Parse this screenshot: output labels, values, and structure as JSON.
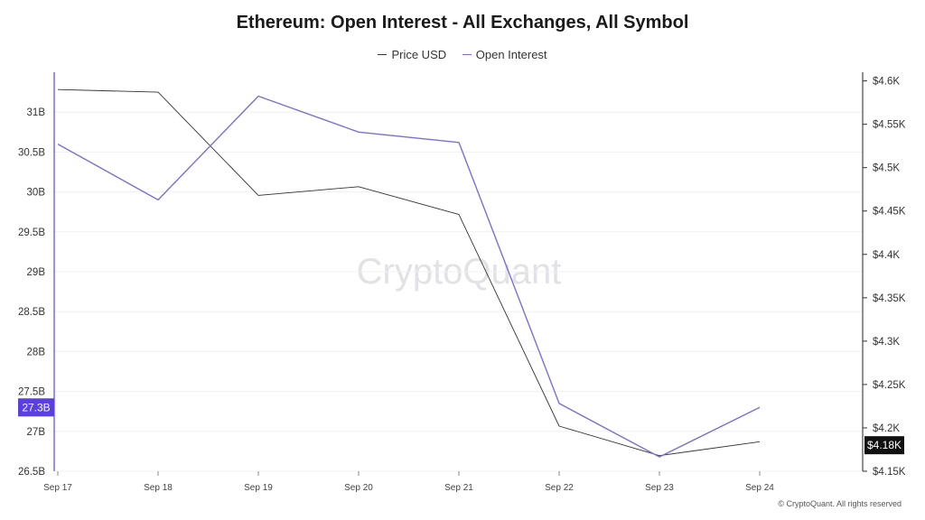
{
  "chart_data": {
    "type": "line",
    "title": "Ethereum: Open Interest - All Exchanges, All Symbol",
    "categories": [
      "Sep 17",
      "Sep 18",
      "Sep 19",
      "Sep 20",
      "Sep 21",
      "Sep 22",
      "Sep 23",
      "Sep 24"
    ],
    "series": [
      {
        "name": "Price USD",
        "axis": "right",
        "color": "#333333",
        "values": [
          4590,
          4587,
          4468,
          4478,
          4446,
          4202,
          4168,
          4184
        ]
      },
      {
        "name": "Open Interest",
        "axis": "left",
        "color": "#7b6fd6",
        "values": [
          30.6,
          29.9,
          31.2,
          30.75,
          30.62,
          27.35,
          26.68,
          27.3
        ]
      }
    ],
    "left_axis": {
      "range": [
        26.5,
        31.5
      ],
      "ticks": [
        26.5,
        27,
        27.5,
        28,
        28.5,
        29,
        29.5,
        30,
        30.5,
        31
      ],
      "tick_labels": [
        "26.5B",
        "27B",
        "27.5B",
        "28B",
        "28.5B",
        "29B",
        "29.5B",
        "30B",
        "30.5B",
        "31B"
      ]
    },
    "right_axis": {
      "range": [
        4150,
        4610
      ],
      "ticks": [
        4150,
        4200,
        4250,
        4300,
        4350,
        4400,
        4450,
        4500,
        4550,
        4600
      ],
      "tick_labels": [
        "$4.15K",
        "$4.2K",
        "$4.25K",
        "$4.3K",
        "$4.35K",
        "$4.4K",
        "$4.45K",
        "$4.5K",
        "$4.55K",
        "$4.6K"
      ]
    },
    "last_value_badges": {
      "left": {
        "label": "27.3B",
        "value": 27.3,
        "color": "#5b3fe0"
      },
      "right": {
        "label": "$4.18K",
        "value": 4180,
        "color": "#111111"
      }
    },
    "legend_position": "top-center",
    "grid": true,
    "watermark": "CryptoQuant",
    "copyright": "© CryptoQuant. All rights reserved"
  }
}
